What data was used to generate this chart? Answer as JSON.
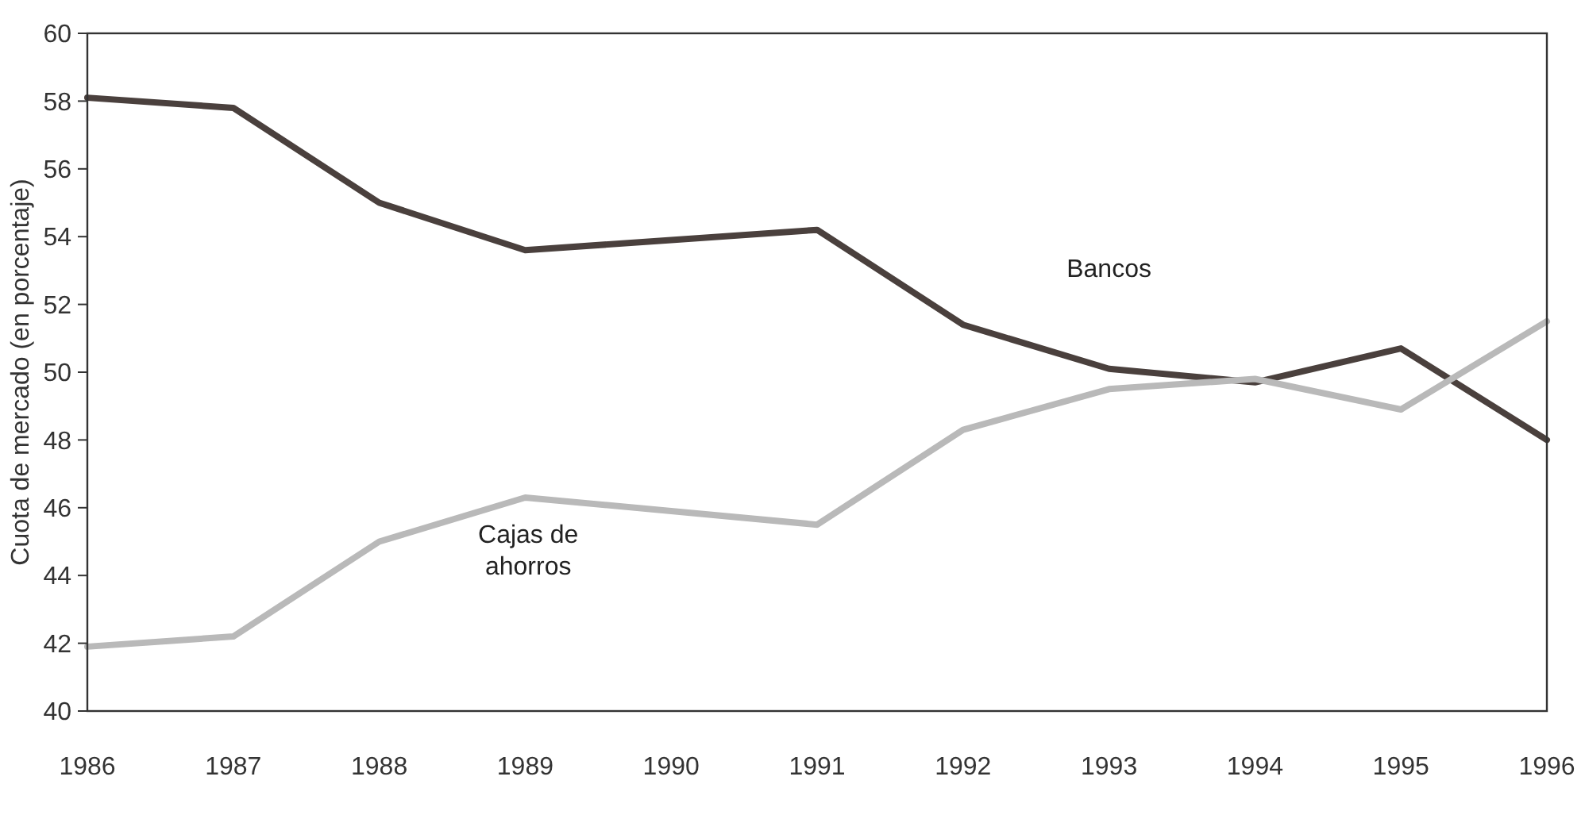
{
  "chart_data": {
    "type": "line",
    "ylabel": "Cuota de mercado (en porcentaje)",
    "x": [
      1986,
      1987,
      1988,
      1989,
      1990,
      1991,
      1992,
      1993,
      1994,
      1995,
      1996
    ],
    "xlim": [
      1986,
      1996
    ],
    "xticks": [
      1986,
      1987,
      1988,
      1989,
      1990,
      1991,
      1992,
      1993,
      1994,
      1995,
      1996
    ],
    "ylim": [
      40,
      60
    ],
    "yticks": [
      40,
      42,
      44,
      46,
      48,
      50,
      52,
      54,
      56,
      58,
      60
    ],
    "grid": false,
    "marker": "none",
    "line_style": "solid",
    "series": [
      {
        "name": "Bancos",
        "color": "#4a403d",
        "values": [
          58.1,
          57.8,
          55.0,
          53.6,
          53.9,
          54.2,
          51.4,
          50.1,
          49.7,
          50.7,
          48.0
        ]
      },
      {
        "name": "Cajas de ahorros",
        "color": "#b9b9b9",
        "values": [
          41.9,
          42.2,
          45.0,
          46.3,
          45.9,
          45.5,
          48.3,
          49.5,
          49.8,
          48.9,
          51.5
        ]
      }
    ]
  }
}
